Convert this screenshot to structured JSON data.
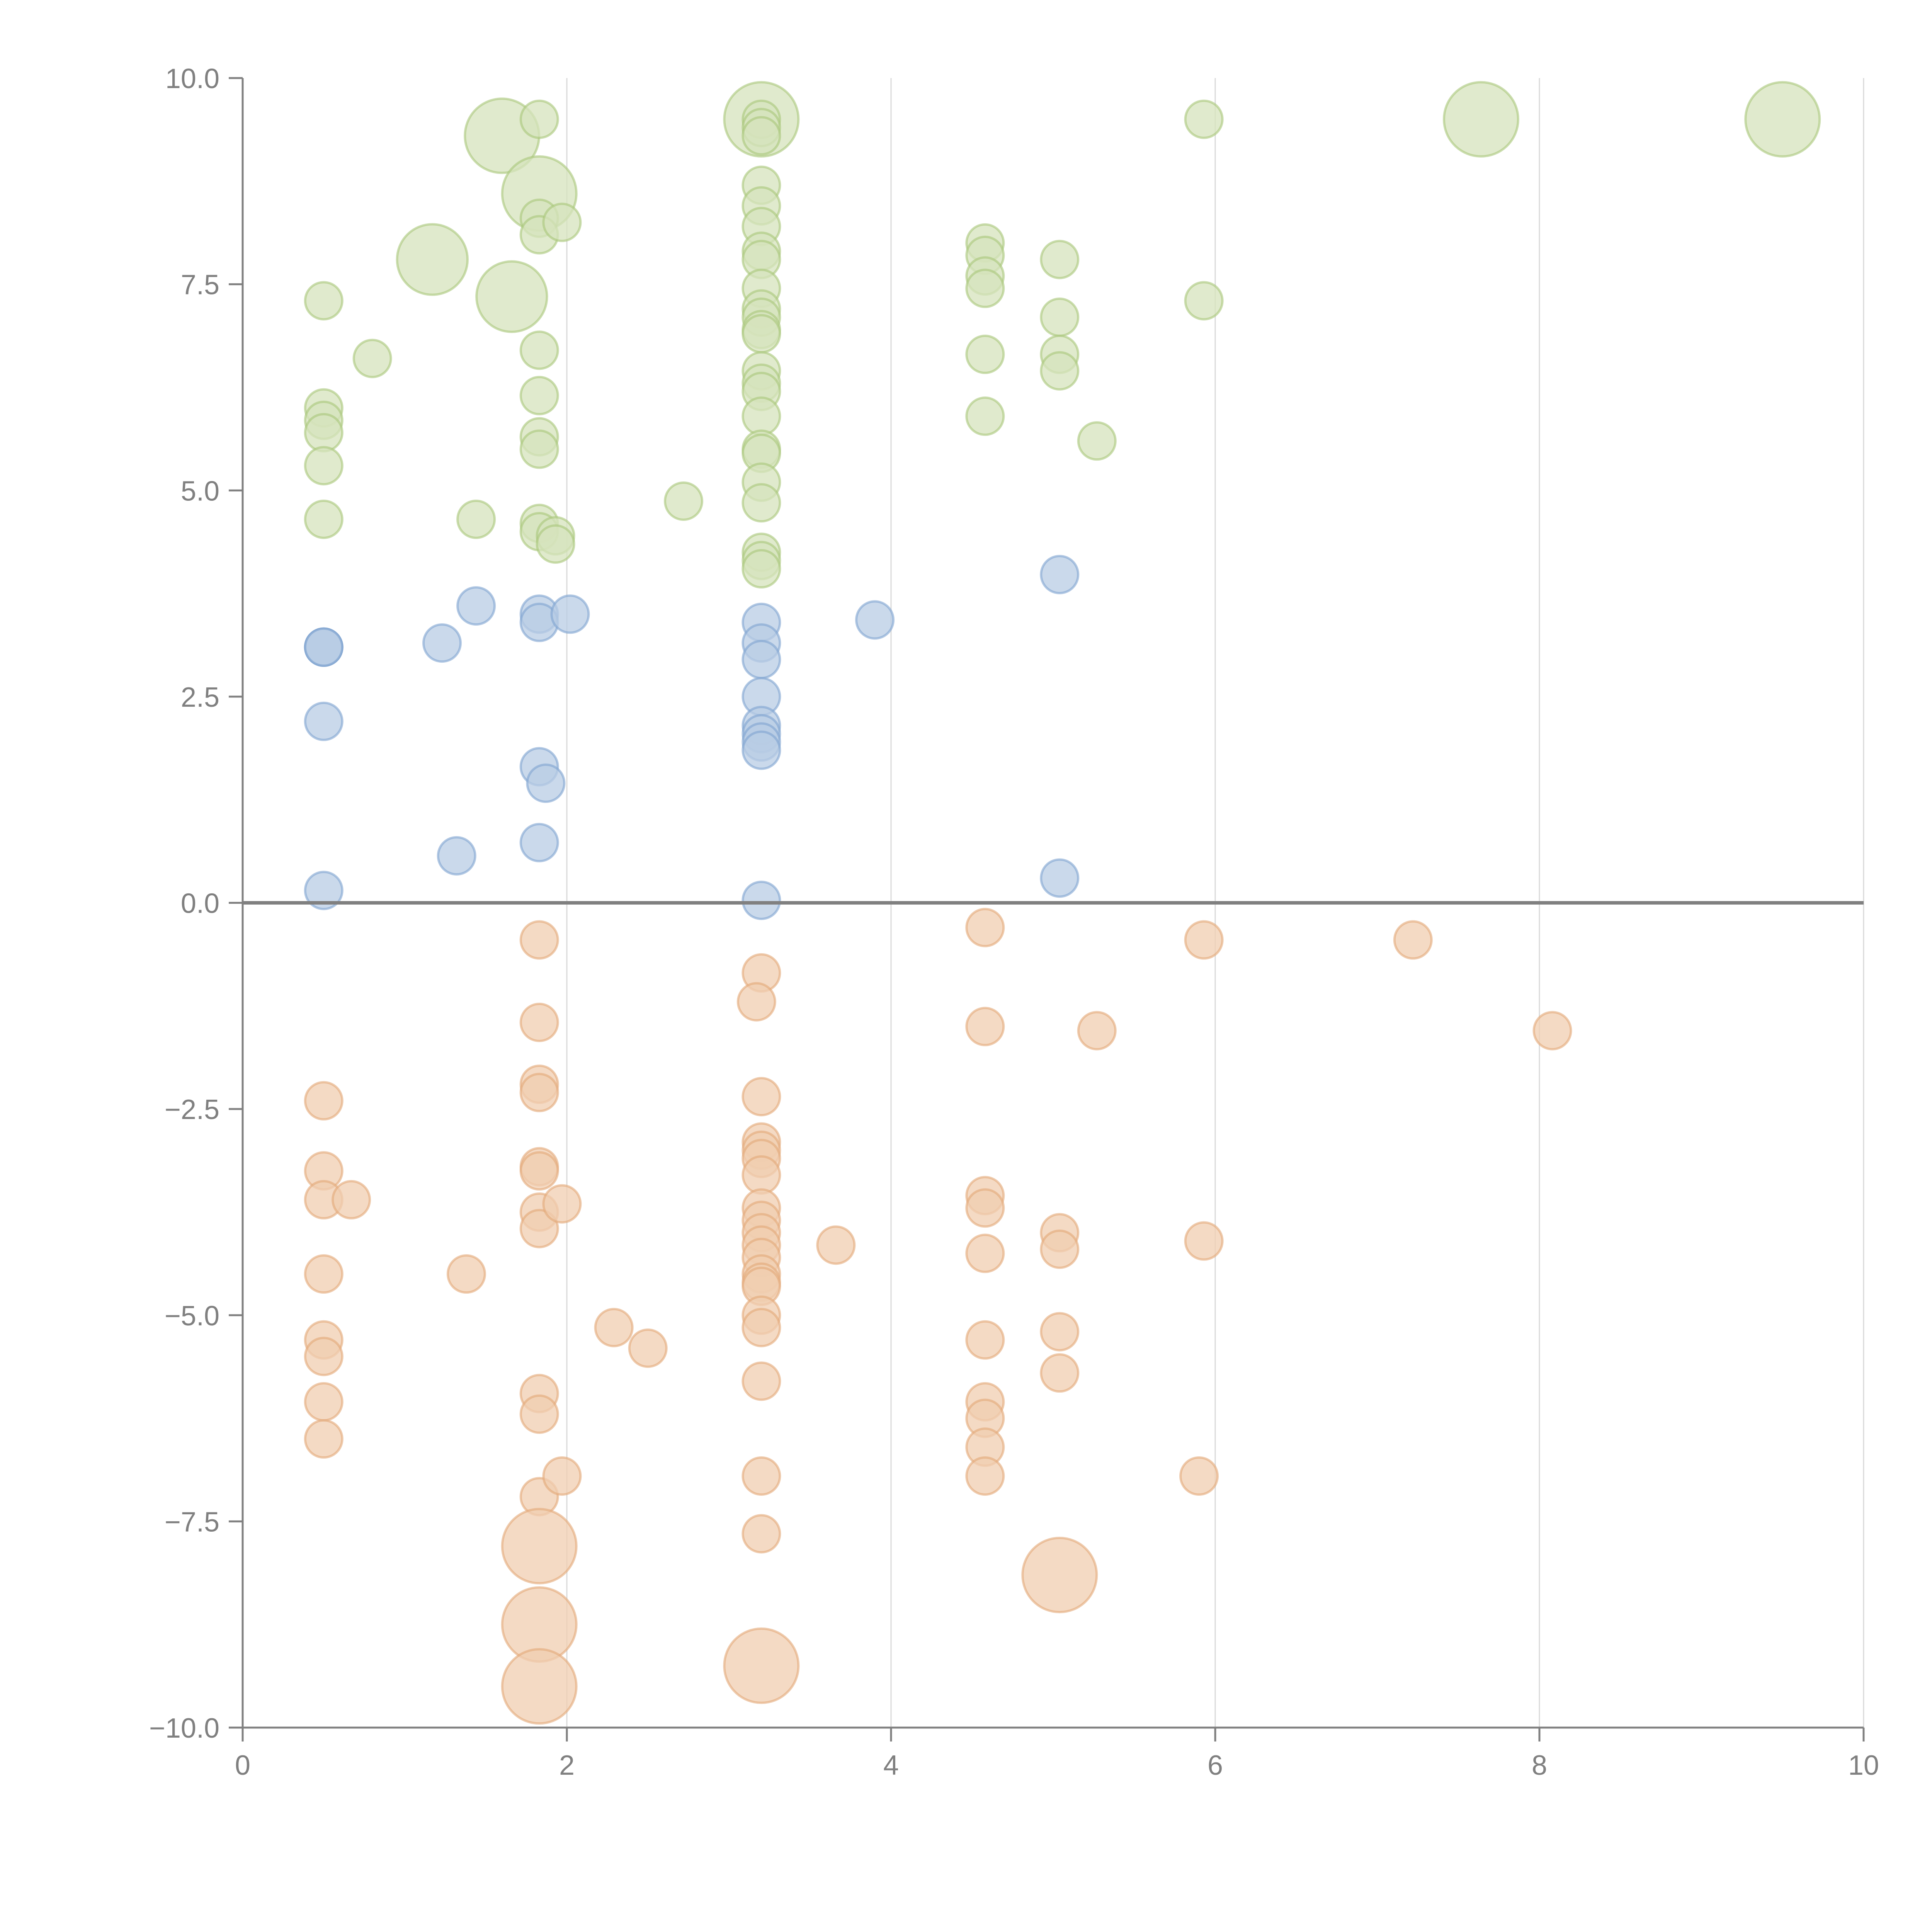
{
  "chart_data": {
    "type": "scatter",
    "title": "",
    "xlabel": "",
    "ylabel": "",
    "xlim": [
      0,
      10
    ],
    "ylim": [
      -10,
      10
    ],
    "grid": "vertical",
    "legend": "none",
    "x_ticks": [
      "0",
      "2",
      "4",
      "6",
      "8",
      "10"
    ],
    "x_tick_values": [
      0,
      2,
      4,
      6,
      8,
      10
    ],
    "y_ticks": [
      "10.0",
      "7.5",
      "5.0",
      "2.5",
      "0.0",
      "−2.5",
      "−5.0",
      "−7.5",
      "−10.0"
    ],
    "y_tick_values": [
      10,
      7.5,
      5,
      2.5,
      0,
      -2.5,
      -5,
      -7.5,
      -10
    ],
    "series": [
      {
        "name": "green",
        "fill": "#d6e3bc",
        "stroke": "#a9c77a",
        "points": [
          [
            0.5,
            7.3,
            1
          ],
          [
            0.8,
            6.6,
            1
          ],
          [
            0.5,
            6.0,
            1
          ],
          [
            0.5,
            5.85,
            1
          ],
          [
            0.5,
            5.7,
            1
          ],
          [
            0.5,
            5.3,
            1
          ],
          [
            0.5,
            4.65,
            1
          ],
          [
            1.17,
            7.8,
            1.9
          ],
          [
            1.44,
            4.65,
            1
          ],
          [
            1.6,
            9.3,
            2.0
          ],
          [
            1.66,
            7.35,
            1.9
          ],
          [
            1.83,
            9.5,
            1
          ],
          [
            1.83,
            8.6,
            2.0
          ],
          [
            1.83,
            8.3,
            1
          ],
          [
            1.83,
            8.1,
            1
          ],
          [
            1.97,
            8.25,
            1
          ],
          [
            1.83,
            6.7,
            1
          ],
          [
            1.83,
            6.15,
            1
          ],
          [
            1.83,
            5.65,
            1
          ],
          [
            1.83,
            5.5,
            1
          ],
          [
            1.83,
            4.6,
            1
          ],
          [
            1.83,
            4.5,
            1
          ],
          [
            1.93,
            4.45,
            1
          ],
          [
            1.93,
            4.35,
            1
          ],
          [
            2.72,
            4.87,
            1
          ],
          [
            3.2,
            9.5,
            2.0
          ],
          [
            3.2,
            9.5,
            1
          ],
          [
            3.2,
            9.4,
            1
          ],
          [
            3.2,
            9.3,
            1
          ],
          [
            3.2,
            8.7,
            1
          ],
          [
            3.2,
            8.45,
            1
          ],
          [
            3.2,
            8.2,
            1
          ],
          [
            3.2,
            7.9,
            1
          ],
          [
            3.2,
            7.8,
            1
          ],
          [
            3.2,
            7.45,
            1
          ],
          [
            3.2,
            7.2,
            1
          ],
          [
            3.2,
            7.1,
            1
          ],
          [
            3.2,
            6.95,
            1
          ],
          [
            3.2,
            6.9,
            1
          ],
          [
            3.2,
            6.45,
            1
          ],
          [
            3.2,
            6.3,
            1
          ],
          [
            3.2,
            6.2,
            1
          ],
          [
            3.2,
            5.9,
            1
          ],
          [
            3.2,
            5.5,
            1
          ],
          [
            3.2,
            5.45,
            1
          ],
          [
            3.2,
            5.1,
            1
          ],
          [
            3.2,
            4.85,
            1
          ],
          [
            3.2,
            4.25,
            1
          ],
          [
            3.2,
            4.15,
            1
          ],
          [
            3.2,
            4.05,
            1
          ],
          [
            4.58,
            8.0,
            1
          ],
          [
            4.58,
            7.85,
            1
          ],
          [
            4.58,
            7.6,
            1
          ],
          [
            4.58,
            7.45,
            1
          ],
          [
            4.58,
            6.65,
            1
          ],
          [
            4.58,
            5.9,
            1
          ],
          [
            5.04,
            7.8,
            1
          ],
          [
            5.04,
            7.1,
            1
          ],
          [
            5.04,
            6.65,
            1
          ],
          [
            5.04,
            6.45,
            1
          ],
          [
            5.27,
            5.6,
            1
          ],
          [
            5.93,
            9.5,
            1
          ],
          [
            5.93,
            7.3,
            1
          ],
          [
            7.64,
            9.5,
            2.0
          ],
          [
            9.5,
            9.5,
            2.0
          ]
        ]
      },
      {
        "name": "blue",
        "fill": "#b8cce4",
        "stroke": "#7fa3d0",
        "points": [
          [
            0.5,
            3.1,
            1
          ],
          [
            0.5,
            3.1,
            1
          ],
          [
            0.5,
            3.1,
            1
          ],
          [
            0.5,
            2.2,
            1
          ],
          [
            0.5,
            0.15,
            1
          ],
          [
            1.23,
            3.15,
            1
          ],
          [
            1.32,
            0.57,
            1
          ],
          [
            1.44,
            3.6,
            1
          ],
          [
            1.83,
            3.5,
            1
          ],
          [
            1.83,
            3.4,
            1
          ],
          [
            2.02,
            3.5,
            1
          ],
          [
            1.83,
            1.65,
            1
          ],
          [
            1.87,
            1.45,
            1
          ],
          [
            1.83,
            0.73,
            1
          ],
          [
            3.2,
            3.4,
            1
          ],
          [
            3.2,
            3.15,
            1
          ],
          [
            3.2,
            2.95,
            1
          ],
          [
            3.2,
            2.5,
            1
          ],
          [
            3.2,
            2.15,
            1
          ],
          [
            3.2,
            2.05,
            1
          ],
          [
            3.2,
            1.95,
            1
          ],
          [
            3.2,
            1.85,
            1
          ],
          [
            3.2,
            0.03,
            1
          ],
          [
            3.9,
            3.43,
            1
          ],
          [
            5.04,
            3.98,
            1
          ],
          [
            5.04,
            0.3,
            1
          ]
        ]
      },
      {
        "name": "orange",
        "fill": "#f0ceb0",
        "stroke": "#e3a878",
        "points": [
          [
            0.5,
            -2.4,
            1
          ],
          [
            0.5,
            -3.25,
            1
          ],
          [
            0.5,
            -3.6,
            1
          ],
          [
            0.67,
            -3.6,
            1
          ],
          [
            0.5,
            -4.5,
            1
          ],
          [
            0.5,
            -5.3,
            1
          ],
          [
            0.5,
            -5.5,
            1
          ],
          [
            0.5,
            -6.05,
            1
          ],
          [
            0.5,
            -6.5,
            1
          ],
          [
            1.38,
            -4.5,
            1
          ],
          [
            1.83,
            -0.45,
            1
          ],
          [
            1.83,
            -1.45,
            1
          ],
          [
            1.83,
            -2.2,
            1
          ],
          [
            1.83,
            -2.3,
            1
          ],
          [
            1.83,
            -3.2,
            1
          ],
          [
            1.83,
            -3.25,
            1
          ],
          [
            1.83,
            -3.75,
            1
          ],
          [
            1.83,
            -3.95,
            1
          ],
          [
            1.97,
            -3.65,
            1
          ],
          [
            1.83,
            -5.95,
            1
          ],
          [
            1.83,
            -6.2,
            1
          ],
          [
            1.83,
            -7.2,
            1
          ],
          [
            1.97,
            -6.95,
            1
          ],
          [
            1.83,
            -7.8,
            2.0
          ],
          [
            1.83,
            -8.75,
            2.0
          ],
          [
            1.83,
            -9.5,
            2.0
          ],
          [
            2.29,
            -5.15,
            1
          ],
          [
            2.5,
            -5.4,
            1
          ],
          [
            3.2,
            -0.85,
            1
          ],
          [
            3.17,
            -1.2,
            1
          ],
          [
            3.2,
            -2.35,
            1
          ],
          [
            3.2,
            -2.9,
            1
          ],
          [
            3.2,
            -3.0,
            1
          ],
          [
            3.2,
            -3.1,
            1
          ],
          [
            3.2,
            -3.3,
            1
          ],
          [
            3.2,
            -3.7,
            1
          ],
          [
            3.2,
            -3.85,
            1
          ],
          [
            3.2,
            -4.0,
            1
          ],
          [
            3.2,
            -4.15,
            1
          ],
          [
            3.2,
            -4.3,
            1
          ],
          [
            3.2,
            -4.5,
            1
          ],
          [
            3.2,
            -4.6,
            1
          ],
          [
            3.2,
            -4.65,
            1
          ],
          [
            3.2,
            -5.0,
            1
          ],
          [
            3.2,
            -5.15,
            1
          ],
          [
            3.2,
            -5.8,
            1
          ],
          [
            3.2,
            -6.95,
            1
          ],
          [
            3.2,
            -7.65,
            1
          ],
          [
            3.2,
            -9.25,
            2.0
          ],
          [
            3.66,
            -4.15,
            1
          ],
          [
            4.58,
            -0.3,
            1
          ],
          [
            4.58,
            -1.5,
            1
          ],
          [
            4.58,
            -3.55,
            1
          ],
          [
            4.58,
            -3.7,
            1
          ],
          [
            4.58,
            -4.25,
            1
          ],
          [
            4.58,
            -5.3,
            1
          ],
          [
            4.58,
            -6.05,
            1
          ],
          [
            4.58,
            -6.25,
            1
          ],
          [
            4.58,
            -6.6,
            1
          ],
          [
            4.58,
            -6.95,
            1
          ],
          [
            5.04,
            -4.0,
            1
          ],
          [
            5.04,
            -4.2,
            1
          ],
          [
            5.04,
            -5.2,
            1
          ],
          [
            5.04,
            -5.7,
            1
          ],
          [
            5.04,
            -8.15,
            2.0
          ],
          [
            5.27,
            -1.55,
            1
          ],
          [
            5.93,
            -0.45,
            1
          ],
          [
            5.93,
            -4.1,
            1
          ],
          [
            5.9,
            -6.95,
            1
          ],
          [
            7.22,
            -0.45,
            1
          ],
          [
            8.08,
            -1.55,
            1
          ]
        ]
      }
    ]
  }
}
